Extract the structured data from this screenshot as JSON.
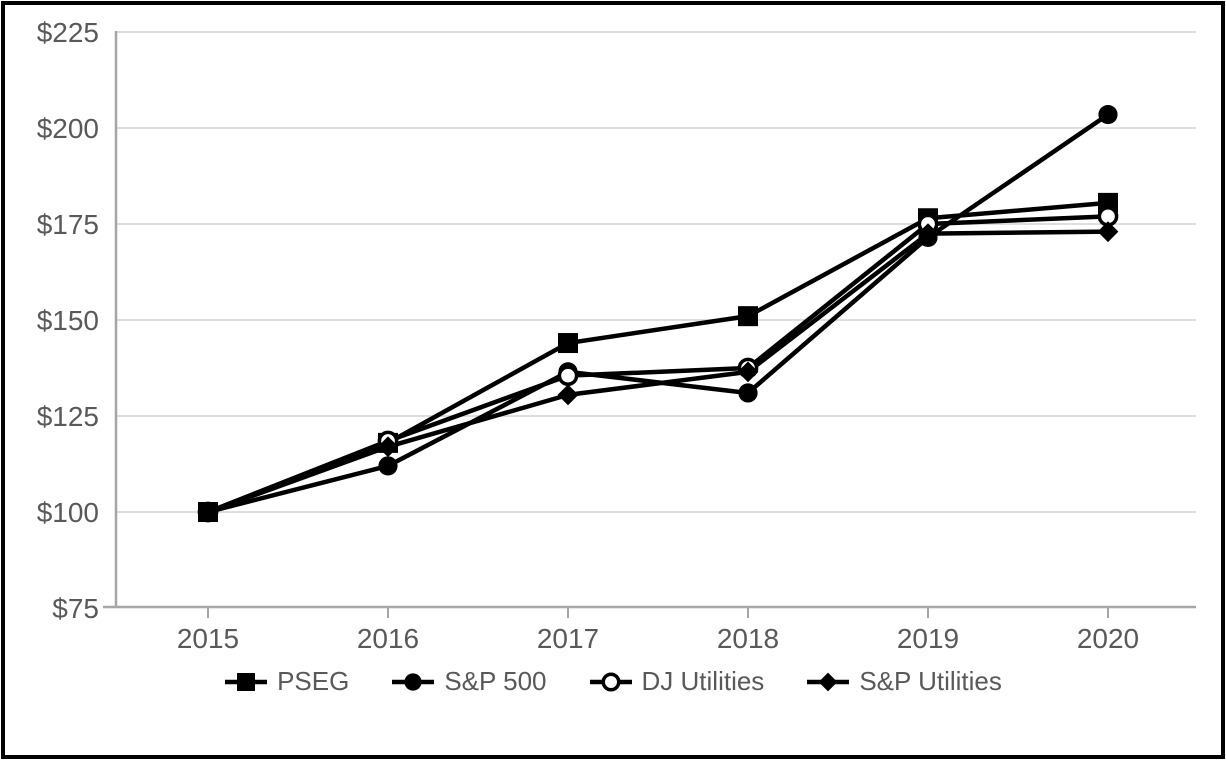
{
  "window": {
    "background": "#ffffff",
    "frame_border_color": "#000000"
  },
  "chart_data": {
    "type": "line",
    "title": "",
    "subtitle": "",
    "categories": [
      "2015",
      "2016",
      "2017",
      "2018",
      "2019",
      "2020"
    ],
    "series": [
      {
        "name": "PSEG",
        "marker": "filled-square",
        "color": "#000000",
        "values": [
          100,
          118,
          144,
          151,
          176.5,
          180.5
        ]
      },
      {
        "name": "S&P 500",
        "marker": "filled-circle",
        "color": "#000000",
        "values": [
          100,
          112,
          136.5,
          131,
          171.5,
          203.5
        ]
      },
      {
        "name": "DJ Utilities",
        "marker": "open-circle",
        "color": "#000000",
        "values": [
          100,
          118.5,
          135.5,
          137.5,
          175,
          177
        ]
      },
      {
        "name": "S&P Utilities",
        "marker": "filled-diamond",
        "color": "#000000",
        "values": [
          100,
          117,
          130.5,
          136.5,
          172.5,
          173
        ]
      }
    ],
    "x_axis": {
      "label": "",
      "tick_labels": [
        "2015",
        "2016",
        "2017",
        "2018",
        "2019",
        "2020"
      ]
    },
    "y_axis": {
      "label": "",
      "min": 75,
      "max": 225,
      "step": 25,
      "tick_labels": [
        "$75",
        "$100",
        "$125",
        "$150",
        "$175",
        "$200",
        "$225"
      ]
    },
    "grid": "horizontal-only",
    "legend_position": "bottom",
    "colors": {
      "series": "#000000",
      "axis": "#a6a6a6",
      "gridline": "#dedede",
      "tick_label": "#595959",
      "legend_text": "#595959",
      "background": "#ffffff"
    }
  }
}
